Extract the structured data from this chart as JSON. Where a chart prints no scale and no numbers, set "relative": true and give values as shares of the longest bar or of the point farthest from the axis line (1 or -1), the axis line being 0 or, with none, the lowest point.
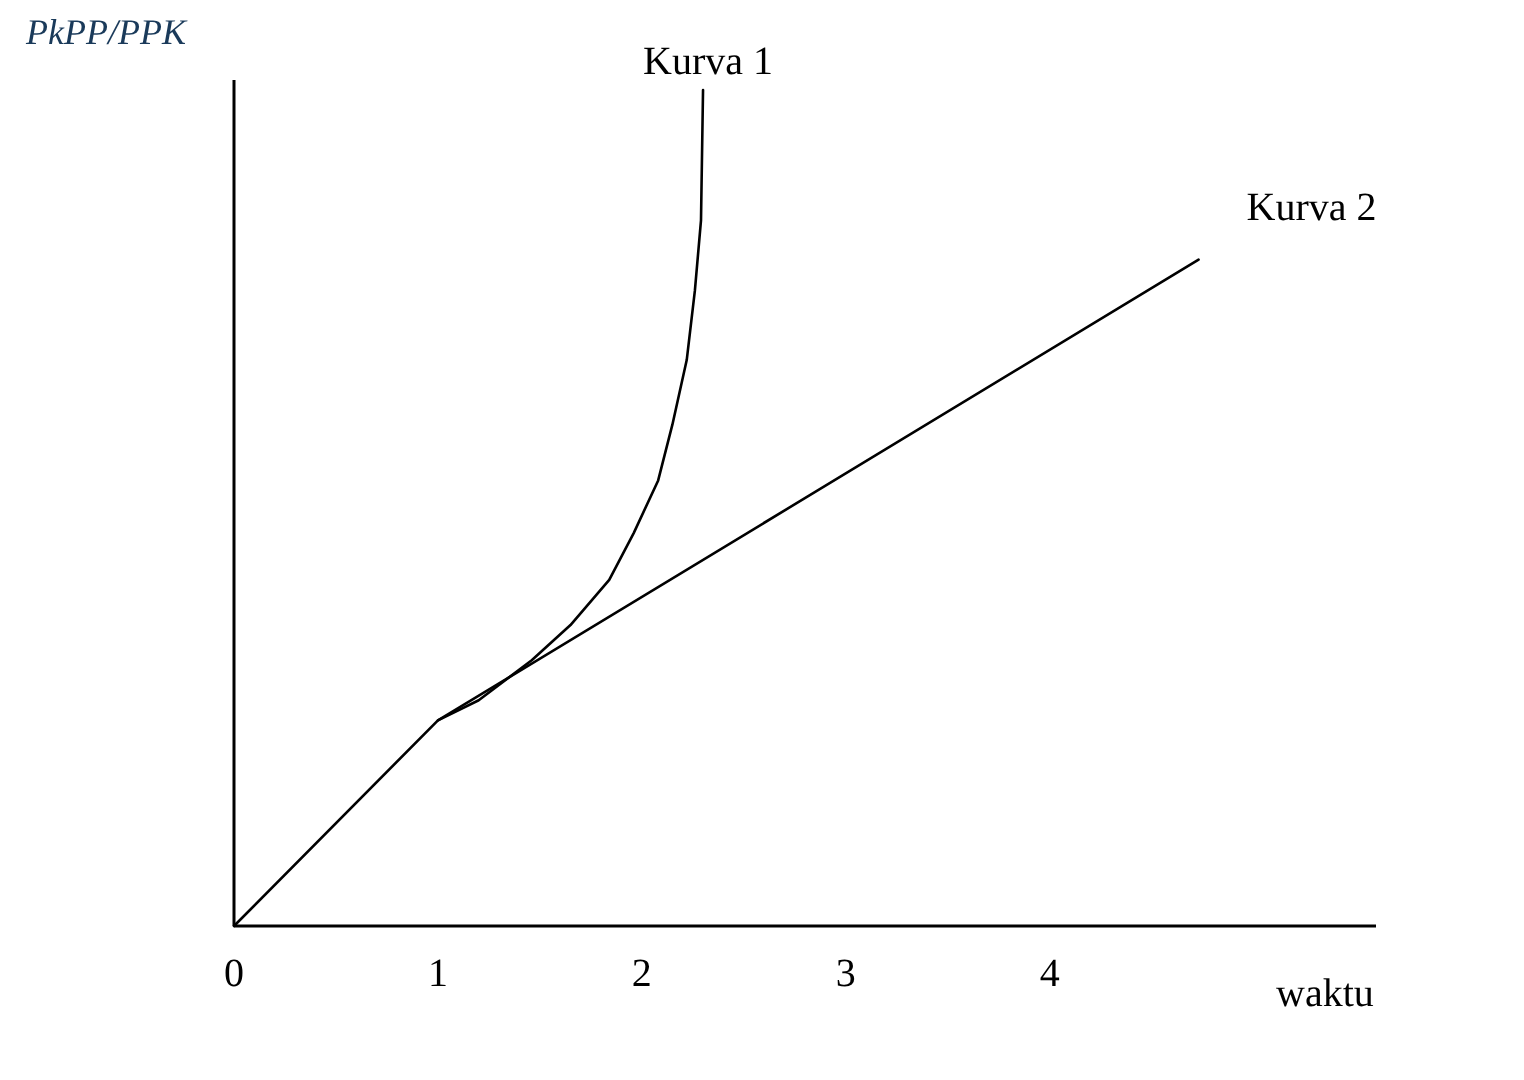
{
  "chart_data": {
    "type": "line",
    "relative": true,
    "ylabel": "PkPP/PPK",
    "xlabel": "waktu",
    "xlim": [
      0,
      5.6
    ],
    "xticks": [
      0,
      1,
      2,
      3,
      4
    ],
    "marker": "none",
    "line_style": "solid",
    "series": [
      {
        "name": "Kurva 1",
        "color": "#000000",
        "x": [
          1,
          1.2,
          1.46,
          1.65,
          1.84,
          1.96,
          2.08,
          2.15,
          2.22,
          2.26,
          2.29,
          2.3
        ],
        "values": [
          0.246,
          0.27,
          0.318,
          0.36,
          0.414,
          0.47,
          0.533,
          0.6,
          0.677,
          0.76,
          0.844,
          1.0
        ]
      },
      {
        "name": "Kurva 2",
        "color": "#000000",
        "x": [
          0,
          1,
          4.73
        ],
        "values": [
          0,
          0.246,
          0.797
        ]
      }
    ]
  }
}
